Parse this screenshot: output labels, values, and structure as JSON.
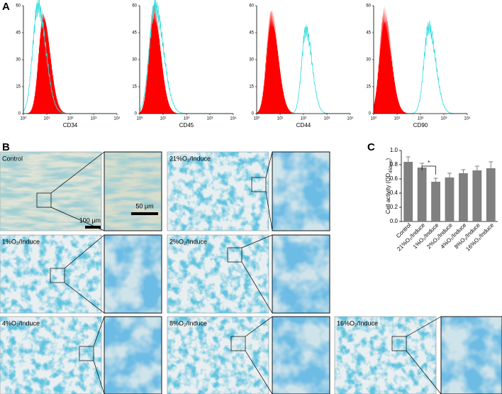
{
  "panel_labels": [
    "A",
    "B",
    "C"
  ],
  "chart_data": [
    {
      "type": "histogram",
      "x_label": "CD34",
      "log_x": true,
      "xlim": [
        1,
        10000
      ],
      "xticks": [
        {
          "value": 1,
          "label": "10⁰"
        },
        {
          "value": 10,
          "label": "10¹"
        },
        {
          "value": 100,
          "label": "10²"
        },
        {
          "value": 1000,
          "label": "10³"
        },
        {
          "value": 10000,
          "label": "10⁴"
        }
      ],
      "ylim": [
        0,
        60
      ],
      "yticks": [
        0,
        15,
        30,
        45,
        60
      ],
      "fill_color": "#ff0000",
      "line_color": "#33dddd"
    },
    {
      "type": "histogram",
      "x_label": "CD45",
      "log_x": true,
      "xlim": [
        1,
        10000
      ],
      "xticks": [
        {
          "value": 1,
          "label": "10⁰"
        },
        {
          "value": 10,
          "label": "10¹"
        },
        {
          "value": 100,
          "label": "10²"
        },
        {
          "value": 1000,
          "label": "10³"
        },
        {
          "value": 10000,
          "label": "10⁴"
        }
      ],
      "ylim": [
        0,
        60
      ],
      "yticks": [
        0,
        15,
        30,
        45,
        60
      ],
      "fill_color": "#ff0000",
      "line_color": "#33dddd"
    },
    {
      "type": "histogram",
      "x_label": "CD44",
      "log_x": true,
      "xlim": [
        1,
        10000
      ],
      "xticks": [
        {
          "value": 1,
          "label": "10⁰"
        },
        {
          "value": 10,
          "label": "10¹"
        },
        {
          "value": 100,
          "label": "10²"
        },
        {
          "value": 1000,
          "label": "10³"
        },
        {
          "value": 10000,
          "label": "10⁴"
        }
      ],
      "ylim": [
        0,
        60
      ],
      "yticks": [
        0,
        15,
        30,
        45,
        60
      ],
      "fill_color": "#ff0000",
      "line_color": "#33dddd"
    },
    {
      "type": "histogram",
      "x_label": "CD90",
      "log_x": true,
      "xlim": [
        1,
        10000
      ],
      "xticks": [
        {
          "value": 1,
          "label": "10⁰"
        },
        {
          "value": 10,
          "label": "10¹"
        },
        {
          "value": 100,
          "label": "10²"
        },
        {
          "value": 1000,
          "label": "10³"
        },
        {
          "value": 10000,
          "label": "10⁴"
        }
      ],
      "ylim": [
        0,
        60
      ],
      "yticks": [
        0,
        15,
        30,
        45,
        60
      ],
      "fill_color": "#ff0000",
      "line_color": "#33dddd"
    },
    {
      "type": "bar",
      "y_label": [
        "Cell activity (OD",
        "450nm",
        ")"
      ],
      "categories": [
        "Control",
        "21%O₂/Induce",
        "1%O₂/Induce",
        "2%O₂/Induce",
        "4%O₂/Induce",
        "8%O₂/Induce",
        "16%O₂/Induce"
      ],
      "values": [
        0.84,
        0.76,
        0.56,
        0.62,
        0.68,
        0.72,
        0.75
      ],
      "errors": [
        0.07,
        0.06,
        0.05,
        0.06,
        0.05,
        0.06,
        0.09
      ],
      "color": "#808080",
      "ylim": [
        0,
        1
      ],
      "yticks": [
        {
          "value": 0,
          "label": "0.0"
        },
        {
          "value": 0.2,
          "label": "0.2"
        },
        {
          "value": 0.4,
          "label": "0.4"
        },
        {
          "value": 0.6,
          "label": "0.6"
        },
        {
          "value": 0.8,
          "label": "0.8"
        },
        {
          "value": 1,
          "label": "1.0"
        }
      ],
      "annotation": "*"
    }
  ],
  "micrographs": [
    "Control",
    "21%O₂/Induce",
    "1%O₂/Induce",
    "2%O₂/Induce",
    "4%O₂/Induce",
    "8%O₂/Induce",
    "16%O₂/Induce"
  ],
  "scale_bars": [
    "100 μm",
    "50 μm"
  ]
}
